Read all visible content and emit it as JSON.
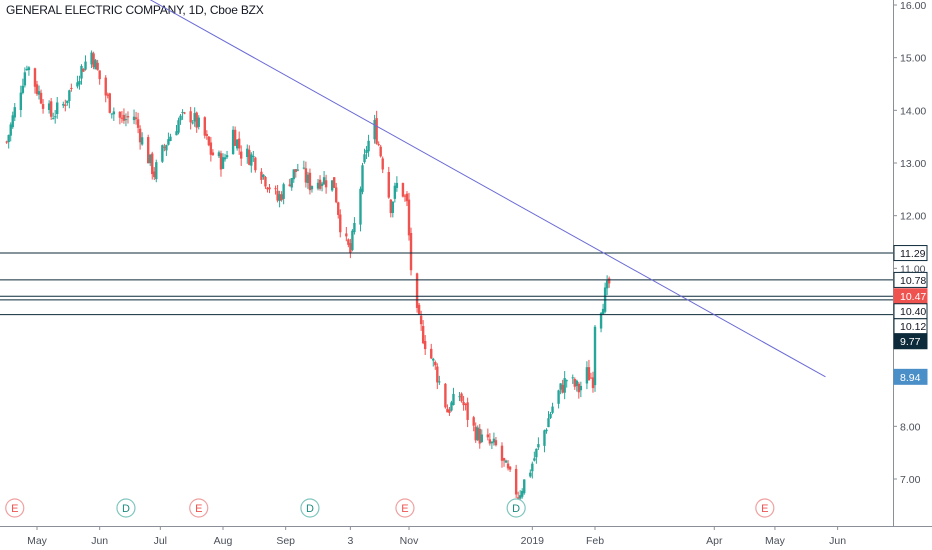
{
  "header": {
    "title": "GENERAL ELECTRIC COMPANY, 1D, Cboe BZX"
  },
  "chart_data": {
    "type": "candlestick",
    "title": "GENERAL ELECTRIC COMPANY, 1D, Cboe BZX",
    "xlabel": "",
    "ylabel": "",
    "y_axis": {
      "ticks": [
        "7.00",
        "8.00",
        "9.77",
        "10.12",
        "10.40",
        "10.78",
        "11.00",
        "12.00",
        "13.00",
        "14.00",
        "15.00",
        "16.00"
      ],
      "tick_values": [
        7,
        8,
        9,
        10,
        11,
        12,
        13,
        14,
        15,
        16
      ],
      "ylim": [
        6.0,
        16.1
      ]
    },
    "x_axis": {
      "ticks": [
        "May",
        "Jun",
        "Jul",
        "Aug",
        "Sep",
        "3",
        "Nov",
        "2019",
        "Feb",
        "Apr",
        "May",
        "Jun"
      ],
      "xlim": [
        "2018-04-16",
        "2019-06-30"
      ]
    },
    "grid": false,
    "colors": {
      "up": "#26a69a",
      "down": "#ef5350",
      "trendline": "#6b6bd6",
      "level": "#0d2a3a"
    },
    "price_path": [
      [
        "2018-04-16",
        13.4
      ],
      [
        "2018-04-20",
        14.0
      ],
      [
        "2018-04-26",
        14.9
      ],
      [
        "2018-05-01",
        14.4
      ],
      [
        "2018-05-08",
        13.9
      ],
      [
        "2018-05-14",
        14.1
      ],
      [
        "2018-05-20",
        14.6
      ],
      [
        "2018-05-28",
        15.1
      ],
      [
        "2018-06-01",
        14.6
      ],
      [
        "2018-06-06",
        14.1
      ],
      [
        "2018-06-12",
        13.8
      ],
      [
        "2018-06-18",
        13.9
      ],
      [
        "2018-06-24",
        13.2
      ],
      [
        "2018-06-28",
        12.8
      ],
      [
        "2018-07-04",
        13.4
      ],
      [
        "2018-07-10",
        13.8
      ],
      [
        "2018-07-16",
        13.9
      ],
      [
        "2018-07-22",
        13.6
      ],
      [
        "2018-07-26",
        13.2
      ],
      [
        "2018-08-01",
        13.0
      ],
      [
        "2018-08-06",
        13.6
      ],
      [
        "2018-08-10",
        13.2
      ],
      [
        "2018-08-16",
        13.1
      ],
      [
        "2018-08-22",
        12.7
      ],
      [
        "2018-08-28",
        12.3
      ],
      [
        "2018-09-03",
        12.7
      ],
      [
        "2018-09-07",
        12.9
      ],
      [
        "2018-09-13",
        12.6
      ],
      [
        "2018-09-19",
        12.7
      ],
      [
        "2018-09-25",
        12.6
      ],
      [
        "2018-09-29",
        11.6
      ],
      [
        "2018-10-03",
        11.3
      ],
      [
        "2018-10-07",
        12.3
      ],
      [
        "2018-10-11",
        13.3
      ],
      [
        "2018-10-15",
        13.7
      ],
      [
        "2018-10-19",
        13.0
      ],
      [
        "2018-10-23",
        12.2
      ],
      [
        "2018-10-27",
        12.7
      ],
      [
        "2018-10-31",
        12.2
      ],
      [
        "2018-11-02",
        11.0
      ],
      [
        "2018-11-04",
        10.2
      ],
      [
        "2018-11-09",
        9.6
      ],
      [
        "2018-11-14",
        9.1
      ],
      [
        "2018-11-20",
        8.3
      ],
      [
        "2018-11-26",
        8.6
      ],
      [
        "2018-12-02",
        8.0
      ],
      [
        "2018-12-08",
        7.7
      ],
      [
        "2018-12-14",
        7.6
      ],
      [
        "2018-12-20",
        7.1
      ],
      [
        "2018-12-25",
        6.7
      ],
      [
        "2018-12-31",
        7.2
      ],
      [
        "2019-01-06",
        7.8
      ],
      [
        "2019-01-12",
        8.5
      ],
      [
        "2019-01-18",
        8.9
      ],
      [
        "2019-01-24",
        8.7
      ],
      [
        "2019-01-28",
        9.0
      ],
      [
        "2019-01-31",
        8.9
      ],
      [
        "2019-02-01",
        10.0
      ],
      [
        "2019-02-04",
        10.3
      ],
      [
        "2019-02-08",
        10.7
      ]
    ],
    "trendline": {
      "start": [
        "2018-06-26",
        16.1
      ],
      "end": [
        "2019-05-26",
        8.94
      ]
    },
    "horizontal_levels": [
      11.29,
      10.78,
      10.47,
      10.4,
      10.12
    ],
    "price_labels": [
      {
        "text": "11.29",
        "value": 11.29,
        "style": "outline"
      },
      {
        "text": "10.78",
        "value": 10.78,
        "style": "outline"
      },
      {
        "text": "10.47",
        "value": 10.47,
        "style": "red"
      },
      {
        "text": "10.40",
        "value": 10.4,
        "style": "outline"
      },
      {
        "text": "10.12",
        "value": 10.12,
        "style": "outline"
      },
      {
        "text": "9.77",
        "value": 9.77,
        "style": "dark"
      },
      {
        "text": "8.94",
        "value": 8.94,
        "style": "blue"
      }
    ],
    "event_markers": [
      {
        "label": "E",
        "date": "2018-04-20",
        "kind": "earnings"
      },
      {
        "label": "D",
        "date": "2018-06-14",
        "kind": "dividend"
      },
      {
        "label": "E",
        "date": "2018-07-20",
        "kind": "earnings"
      },
      {
        "label": "D",
        "date": "2018-09-13",
        "kind": "dividend"
      },
      {
        "label": "E",
        "date": "2018-10-30",
        "kind": "earnings"
      },
      {
        "label": "D",
        "date": "2018-12-24",
        "kind": "dividend"
      },
      {
        "label": "E",
        "date": "2019-04-26",
        "kind": "earnings"
      }
    ]
  }
}
